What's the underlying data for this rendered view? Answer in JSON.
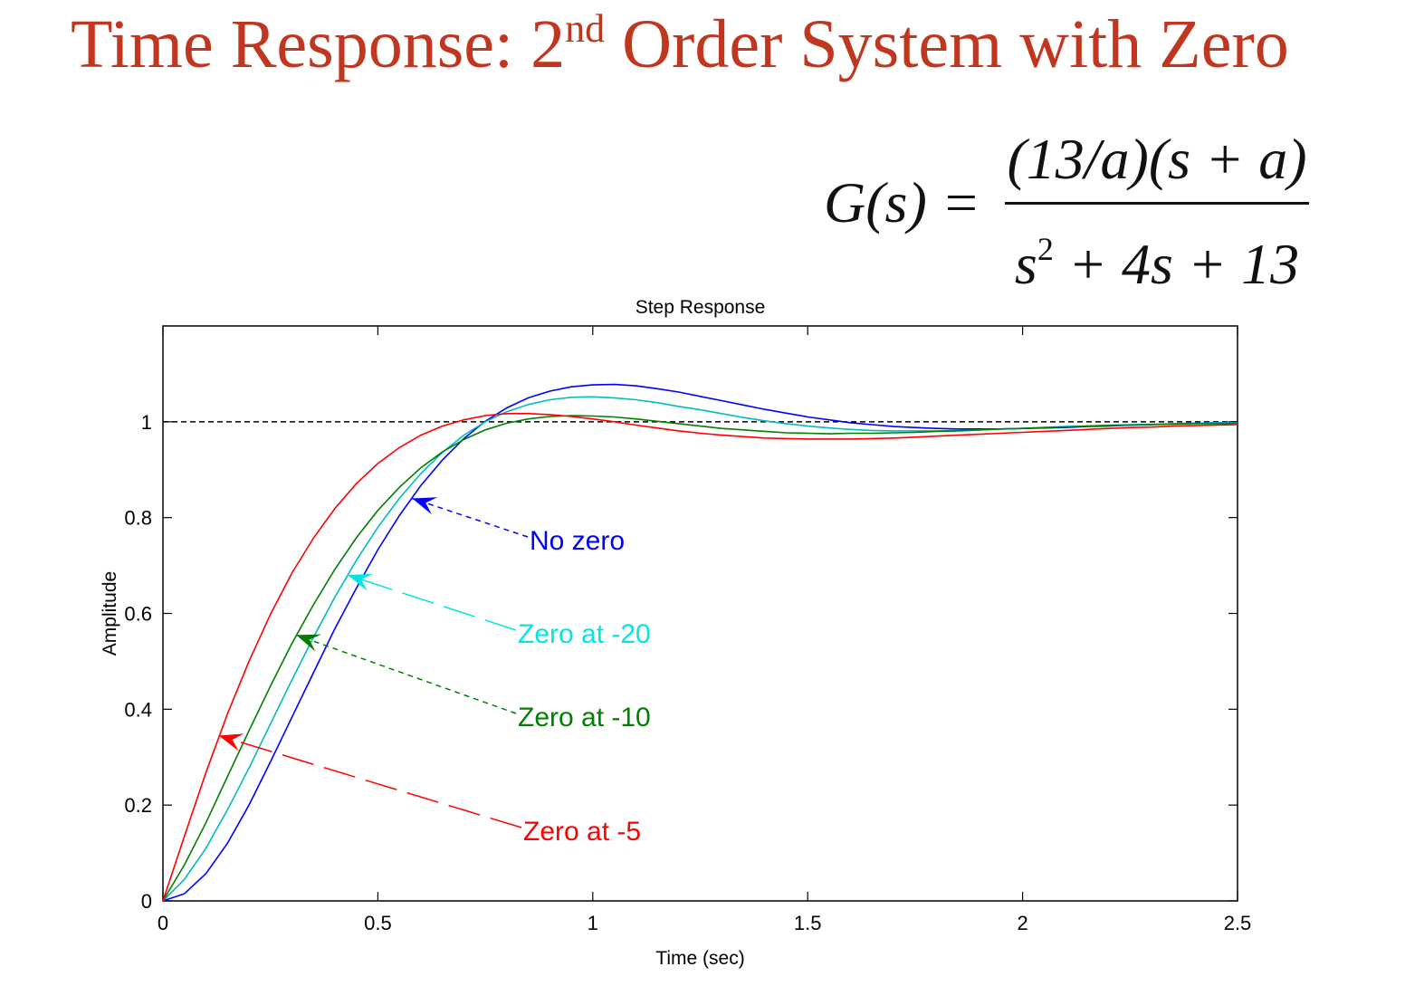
{
  "slide": {
    "title_main": "Time Response: 2",
    "title_sup": "nd",
    "title_rest": " Order System with Zero",
    "formula_lhs": "G(s) =",
    "formula_num": "(13/a)(s + a)",
    "formula_den_a": "s",
    "formula_den_exp": "2",
    "formula_den_b": " + 4s + 13"
  },
  "colors": {
    "title": "#c0361e",
    "no_zero": "#0000ff",
    "zero_20": "#00e5e5",
    "zero_10": "#007f00",
    "zero_5": "#ff0000"
  },
  "chart_data": {
    "type": "line",
    "title": "Step Response",
    "xlabel": "Time (sec)",
    "ylabel": "Amplitude",
    "xlim": [
      0,
      2.5
    ],
    "ylim": [
      0,
      1.2
    ],
    "xticks": [
      "0",
      "0.5",
      "1",
      "1.5",
      "2",
      "2.5"
    ],
    "yticks": [
      "0",
      "0.2",
      "0.4",
      "0.6",
      "0.8",
      "1"
    ],
    "grid": false,
    "reference_line": {
      "y": 1,
      "style": "dashed"
    },
    "x": [
      0,
      0.05,
      0.1,
      0.15,
      0.2,
      0.25,
      0.3,
      0.35,
      0.4,
      0.45,
      0.5,
      0.55,
      0.6,
      0.65,
      0.7,
      0.75,
      0.8,
      0.85,
      0.9,
      0.95,
      1,
      1.05,
      1.1,
      1.15,
      1.2,
      1.25,
      1.3,
      1.35,
      1.4,
      1.45,
      1.5,
      1.55,
      1.6,
      1.65,
      1.7,
      1.75,
      1.8,
      1.85,
      1.9,
      1.95,
      2,
      2.05,
      2.1,
      2.15,
      2.2,
      2.25,
      2.3,
      2.35,
      2.4,
      2.45,
      2.5
    ],
    "series": [
      {
        "name": "No zero",
        "color": "#0000ff",
        "values": [
          0,
          0.015,
          0.057,
          0.12,
          0.2,
          0.29,
          0.383,
          0.476,
          0.568,
          0.653,
          0.733,
          0.804,
          0.867,
          0.92,
          0.965,
          1.001,
          1.029,
          1.05,
          1.064,
          1.073,
          1.077,
          1.078,
          1.075,
          1.069,
          1.062,
          1.053,
          1.044,
          1.035,
          1.026,
          1.018,
          1.01,
          1.004,
          0.998,
          0.994,
          0.99,
          0.988,
          0.986,
          0.985,
          0.985,
          0.985,
          0.986,
          0.987,
          0.988,
          0.99,
          0.991,
          0.993,
          0.994,
          0.996,
          0.997,
          0.998,
          0.999
        ]
      },
      {
        "name": "Zero at -20",
        "color": "#00bcbc",
        "values": [
          0,
          0.045,
          0.11,
          0.19,
          0.277,
          0.369,
          0.461,
          0.55,
          0.634,
          0.711,
          0.78,
          0.84,
          0.892,
          0.936,
          0.972,
          1.0,
          1.021,
          1.036,
          1.046,
          1.051,
          1.052,
          1.05,
          1.046,
          1.04,
          1.032,
          1.025,
          1.017,
          1.009,
          1.002,
          0.996,
          0.991,
          0.987,
          0.984,
          0.982,
          0.981,
          0.981,
          0.981,
          0.982,
          0.983,
          0.985,
          0.986,
          0.988,
          0.99,
          0.991,
          0.993,
          0.994,
          0.995,
          0.996,
          0.997,
          0.998,
          0.998
        ]
      },
      {
        "name": "Zero at -10",
        "color": "#007f00",
        "values": [
          0,
          0.075,
          0.163,
          0.259,
          0.355,
          0.448,
          0.537,
          0.618,
          0.692,
          0.758,
          0.815,
          0.863,
          0.904,
          0.937,
          0.963,
          0.983,
          0.997,
          1.006,
          1.011,
          1.013,
          1.012,
          1.01,
          1.006,
          1.001,
          0.996,
          0.991,
          0.986,
          0.983,
          0.98,
          0.977,
          0.976,
          0.975,
          0.976,
          0.976,
          0.977,
          0.978,
          0.98,
          0.981,
          0.983,
          0.985,
          0.986,
          0.988,
          0.989,
          0.991,
          0.992,
          0.993,
          0.994,
          0.995,
          0.996,
          0.996,
          0.997
        ]
      },
      {
        "name": "Zero at -5",
        "color": "#ff0000",
        "values": [
          0,
          0.135,
          0.268,
          0.39,
          0.5,
          0.598,
          0.684,
          0.757,
          0.819,
          0.871,
          0.913,
          0.946,
          0.972,
          0.991,
          1.004,
          1.013,
          1.017,
          1.017,
          1.015,
          1.011,
          1.006,
          1.0,
          0.993,
          0.987,
          0.981,
          0.976,
          0.972,
          0.969,
          0.966,
          0.965,
          0.964,
          0.964,
          0.964,
          0.965,
          0.966,
          0.968,
          0.97,
          0.972,
          0.974,
          0.976,
          0.978,
          0.98,
          0.982,
          0.984,
          0.986,
          0.988,
          0.989,
          0.991,
          0.992,
          0.993,
          0.994
        ]
      }
    ],
    "annotations": [
      {
        "text": "No zero",
        "color": "#0000ff",
        "arrow_to": [
          0.58,
          0.84
        ],
        "dash": "6,5"
      },
      {
        "text": "Zero at -20",
        "color": "#00e5e5",
        "arrow_to": [
          0.43,
          0.68
        ],
        "dash": "36,12"
      },
      {
        "text": "Zero at -10",
        "color": "#007f00",
        "arrow_to": [
          0.31,
          0.555
        ],
        "dash": "6,5"
      },
      {
        "text": "Zero at -5",
        "color": "#ff0000",
        "arrow_to": [
          0.13,
          0.345
        ],
        "dash": "36,12"
      }
    ]
  }
}
